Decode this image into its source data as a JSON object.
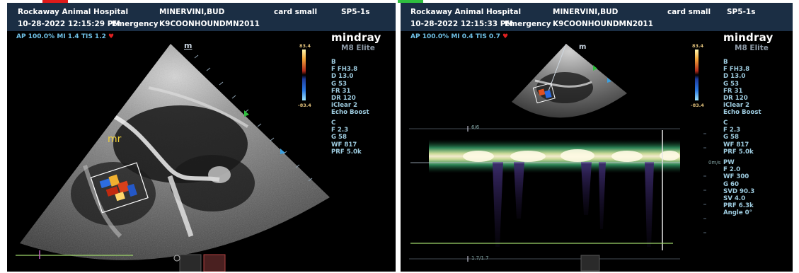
{
  "left_panel": {
    "hospital": "Rockaway Animal Hospital",
    "patient": "MINERVINI,BUD",
    "preset": "card small",
    "probe": "SP5-1s",
    "datetime": "10-28-2022 12:15:29 PM",
    "exam_type": "Emergency",
    "patient_id": "K9COONHOUNDMN2011",
    "acoustic": "AP 100.0%  MI 1.4  TIS 1.2",
    "brand": "mindray",
    "model": "M8 Elite",
    "annotation": "mr",
    "probe_mark": "m",
    "scale_top": "83.4",
    "scale_bottom": "-83.4",
    "b_params": [
      "B",
      "F FH3.8",
      "D 13.0",
      "G 53",
      "FR 31",
      "DR 120",
      "iClear 2",
      "Echo Boost"
    ],
    "c_params": [
      "C",
      "F 2.3",
      "G 58",
      "WF 817",
      "PRF 5.0k"
    ]
  },
  "right_panel": {
    "hospital": "Rockaway Animal Hospital",
    "patient": "MINERVINI,BUD",
    "preset": "card small",
    "probe": "SP5-1s",
    "datetime": "10-28-2022 12:15:33 PM",
    "exam_type": "Emergency",
    "patient_id": "K9COONHOUNDMN2011",
    "acoustic": "AP 100.0%  MI 0.4  TIS 0.7",
    "brand": "mindray",
    "model": "M8 Elite",
    "probe_mark": "m",
    "scale_top": "83.4",
    "scale_bottom": "-83.4",
    "b_params": [
      "B",
      "F FH3.8",
      "D 13.0",
      "G 53",
      "FR 31",
      "DR 120",
      "iClear 2",
      "Echo Boost"
    ],
    "c_params": [
      "C",
      "F 2.3",
      "G 58",
      "WF 817",
      "PRF 5.0k"
    ],
    "pw_params": [
      "PW",
      "F 2.0",
      "WF 300",
      "G 60",
      "SVD 90.3",
      "SV 4.0",
      "PRF 6.3k",
      "Angle 0°"
    ],
    "baseline_label": "0m/s",
    "sweep_top": "6/6",
    "sweep_bottom": "1.7/1.7"
  },
  "colors": {
    "header_bg": "#1b2e44",
    "info_text": "#6fc0e6",
    "param_text": "#9ecce0",
    "annotation": "#f2d23a",
    "trace_line": "#9ed66a",
    "marker_red": "#e01a1a",
    "marker_green": "#2fbf3f"
  }
}
